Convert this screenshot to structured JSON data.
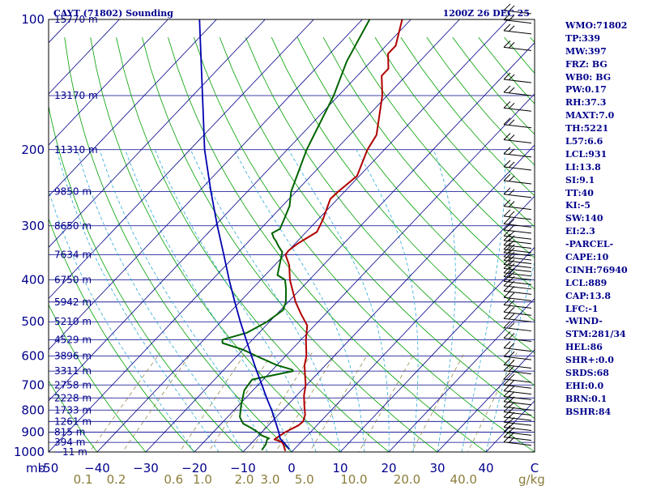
{
  "colors": {
    "background": "#ffffff",
    "label_blue": "#00008b",
    "isobar": "#00008b",
    "isotherm": "#00008b",
    "dry_adiabat": "#00a000",
    "moist_adiabat": "#2fa8d8",
    "mixing_ratio": "#8b7d3a",
    "temperature": "#b00000",
    "dewpoint": "#006400",
    "parcel": "#0000b0",
    "wind_barb": "#000000"
  },
  "header": {
    "station": "CAYT (71802) Sounding",
    "time": "1200Z 26 DEC 25"
  },
  "indices": [
    "WMO:71802",
    "TP:339",
    "MW:397",
    "FRZ: BG",
    "WB0: BG",
    "PW:0.17",
    "RH:37.3",
    "MAXT:7.0",
    "TH:5221",
    "L57:6.6",
    "LCL:931",
    "LI:13.8",
    "SI:9.1",
    "TT:40",
    "KI:-5",
    "SW:140",
    "EI:2.3",
    "-PARCEL-",
    "CAPE:10",
    "CINH:76940",
    "LCL:889",
    "CAP:13.8",
    "LFC:-1",
    "-WIND-",
    "STM:281/34",
    "HEL:86",
    "SHR+:0.0",
    "SRDS:68",
    "EHI:0.0",
    "BRN:0.1",
    "BSHR:84"
  ],
  "chart_data": {
    "type": "skew-t",
    "title": "CAYT (71802) Sounding",
    "valid_time": "1200Z 26 DEC 25",
    "pressure_axis": {
      "type": "log",
      "range_hpa": [
        1000,
        100
      ],
      "tick_labels": [
        {
          "p": 100,
          "label": "100"
        },
        {
          "p": 200,
          "label": "200"
        },
        {
          "p": 300,
          "label": "300"
        },
        {
          "p": 400,
          "label": "400"
        },
        {
          "p": 500,
          "label": "500"
        },
        {
          "p": 600,
          "label": "600"
        },
        {
          "p": 700,
          "label": "700"
        },
        {
          "p": 800,
          "label": "800"
        },
        {
          "p": 900,
          "label": "900"
        },
        {
          "p": 1000,
          "label": "1000"
        }
      ],
      "unit_label": "mb"
    },
    "temperature_axis": {
      "range_c": [
        -50,
        50
      ],
      "tick_labels": [
        "-50",
        "−40",
        "−30",
        "−20",
        "−10",
        "0",
        "10",
        "20",
        "30",
        "40",
        "C"
      ],
      "tick_values": [
        -50,
        -40,
        -30,
        -20,
        -10,
        0,
        10,
        20,
        30,
        40
      ]
    },
    "mixing_ratio_labels": [
      {
        "w": 0.1,
        "label": "0.1"
      },
      {
        "w": 0.2,
        "label": "0.2"
      },
      {
        "w": 0.6,
        "label": "0.6"
      },
      {
        "w": 1.0,
        "label": "1.0"
      },
      {
        "w": 2.0,
        "label": "2.0"
      },
      {
        "w": 3.0,
        "label": "3.0"
      },
      {
        "w": 5.0,
        "label": "5.0"
      },
      {
        "w": 10.0,
        "label": "10.0"
      },
      {
        "w": 20.0,
        "label": "20.0"
      },
      {
        "w": 40.0,
        "label": "40.0"
      }
    ],
    "mixing_ratio_unit": "g/kg",
    "height_labels": [
      {
        "p": 100,
        "label": "15770 m"
      },
      {
        "p": 150,
        "label": "13170 m"
      },
      {
        "p": 200,
        "label": "11310 m"
      },
      {
        "p": 250,
        "label": "9850 m"
      },
      {
        "p": 300,
        "label": "8650 m"
      },
      {
        "p": 350,
        "label": "7634 m"
      },
      {
        "p": 400,
        "label": "6750 m"
      },
      {
        "p": 450,
        "label": "5942 m"
      },
      {
        "p": 500,
        "label": "5210 m"
      },
      {
        "p": 550,
        "label": "4529 m"
      },
      {
        "p": 600,
        "label": "3896 m"
      },
      {
        "p": 650,
        "label": "3311 m"
      },
      {
        "p": 700,
        "label": "2758 m"
      },
      {
        "p": 750,
        "label": "2228 m"
      },
      {
        "p": 800,
        "label": "1733 m"
      },
      {
        "p": 850,
        "label": "1261 m"
      },
      {
        "p": 900,
        "label": "815 m"
      },
      {
        "p": 950,
        "label": "394 m"
      },
      {
        "p": 1000,
        "label": "−11 m"
      }
    ],
    "series": [
      {
        "id": "temperature",
        "points": [
          {
            "p": 995,
            "t": -1.5
          },
          {
            "p": 980,
            "t": -2.2
          },
          {
            "p": 960,
            "t": -3.2
          },
          {
            "p": 948,
            "t": -4.0
          },
          {
            "p": 935,
            "t": -6.0
          },
          {
            "p": 900,
            "t": -5.2
          },
          {
            "p": 868,
            "t": -3.8
          },
          {
            "p": 850,
            "t": -3.6
          },
          {
            "p": 820,
            "t": -4.5
          },
          {
            "p": 780,
            "t": -6.5
          },
          {
            "p": 740,
            "t": -8.5
          },
          {
            "p": 700,
            "t": -10.2
          },
          {
            "p": 660,
            "t": -12.5
          },
          {
            "p": 630,
            "t": -14.3
          },
          {
            "p": 600,
            "t": -15.7
          },
          {
            "p": 550,
            "t": -19.0
          },
          {
            "p": 510,
            "t": -21.5
          },
          {
            "p": 480,
            "t": -25.0
          },
          {
            "p": 450,
            "t": -28.5
          },
          {
            "p": 400,
            "t": -34.0
          },
          {
            "p": 370,
            "t": -37.0
          },
          {
            "p": 350,
            "t": -39.8
          },
          {
            "p": 342,
            "t": -40.0
          },
          {
            "p": 330,
            "t": -39.5
          },
          {
            "p": 310,
            "t": -37.8
          },
          {
            "p": 290,
            "t": -39.0
          },
          {
            "p": 260,
            "t": -41.5
          },
          {
            "p": 250,
            "t": -41.3
          },
          {
            "p": 230,
            "t": -40.5
          },
          {
            "p": 200,
            "t": -43.5
          },
          {
            "p": 185,
            "t": -44.5
          },
          {
            "p": 150,
            "t": -51.0
          },
          {
            "p": 135,
            "t": -55.0
          },
          {
            "p": 130,
            "t": -55.0
          },
          {
            "p": 120,
            "t": -58.0
          },
          {
            "p": 115,
            "t": -58.0
          },
          {
            "p": 100,
            "t": -61.8
          }
        ]
      },
      {
        "id": "dewpoint",
        "points": [
          {
            "p": 990,
            "t": -6.5
          },
          {
            "p": 960,
            "t": -6.8
          },
          {
            "p": 935,
            "t": -7.5
          },
          {
            "p": 930,
            "t": -7.3
          },
          {
            "p": 915,
            "t": -9.5
          },
          {
            "p": 900,
            "t": -10.8
          },
          {
            "p": 880,
            "t": -13.0
          },
          {
            "p": 860,
            "t": -15.5
          },
          {
            "p": 830,
            "t": -17.5
          },
          {
            "p": 780,
            "t": -19.5
          },
          {
            "p": 720,
            "t": -21.8
          },
          {
            "p": 680,
            "t": -22.3
          },
          {
            "p": 650,
            "t": -15.5
          },
          {
            "p": 645,
            "t": -16.0
          },
          {
            "p": 630,
            "t": -20.0
          },
          {
            "p": 600,
            "t": -26.0
          },
          {
            "p": 580,
            "t": -30.0
          },
          {
            "p": 560,
            "t": -35.5
          },
          {
            "p": 550,
            "t": -36.2
          },
          {
            "p": 530,
            "t": -32.5
          },
          {
            "p": 500,
            "t": -30.5
          },
          {
            "p": 470,
            "t": -29.5
          },
          {
            "p": 450,
            "t": -30.5
          },
          {
            "p": 420,
            "t": -33.0
          },
          {
            "p": 400,
            "t": -35.0
          },
          {
            "p": 390,
            "t": -37.5
          },
          {
            "p": 370,
            "t": -39.0
          },
          {
            "p": 345,
            "t": -41.0
          },
          {
            "p": 335,
            "t": -42.8
          },
          {
            "p": 325,
            "t": -44.5
          },
          {
            "p": 320,
            "t": -45.5
          },
          {
            "p": 312,
            "t": -46.8
          },
          {
            "p": 305,
            "t": -46.0
          },
          {
            "p": 290,
            "t": -47.0
          },
          {
            "p": 270,
            "t": -48.5
          },
          {
            "p": 250,
            "t": -51.0
          },
          {
            "p": 200,
            "t": -56.0
          },
          {
            "p": 150,
            "t": -61.0
          },
          {
            "p": 125,
            "t": -65.0
          },
          {
            "p": 100,
            "t": -68.5
          }
        ]
      },
      {
        "id": "parcel",
        "points": [
          {
            "p": 985,
            "t": -1.0
          },
          {
            "p": 960,
            "t": -2.8
          },
          {
            "p": 931,
            "t": -5.0
          },
          {
            "p": 900,
            "t": -6.5
          },
          {
            "p": 850,
            "t": -9.3
          },
          {
            "p": 800,
            "t": -12.3
          },
          {
            "p": 750,
            "t": -15.7
          },
          {
            "p": 700,
            "t": -19.2
          },
          {
            "p": 650,
            "t": -23.0
          },
          {
            "p": 600,
            "t": -27.0
          },
          {
            "p": 550,
            "t": -31.3
          },
          {
            "p": 500,
            "t": -36.0
          },
          {
            "p": 450,
            "t": -41.0
          },
          {
            "p": 400,
            "t": -46.5
          },
          {
            "p": 350,
            "t": -52.5
          },
          {
            "p": 300,
            "t": -59.5
          },
          {
            "p": 250,
            "t": -67.5
          },
          {
            "p": 200,
            "t": -77.0
          },
          {
            "p": 150,
            "t": -88.0
          },
          {
            "p": 100,
            "t": -103.5
          }
        ]
      }
    ],
    "wind_barbs_hpa": [
      97,
      102,
      108,
      118,
      140,
      150,
      163,
      178,
      193,
      208,
      223,
      240,
      258,
      275,
      290,
      302,
      312,
      322,
      330,
      338,
      346,
      352,
      360,
      367,
      375,
      383,
      392,
      400,
      410,
      420,
      432,
      447,
      465,
      483,
      500,
      525,
      555,
      585,
      612,
      640,
      660,
      690,
      712,
      735,
      757,
      778,
      800,
      822,
      845,
      868,
      892,
      915,
      940,
      965
    ]
  }
}
